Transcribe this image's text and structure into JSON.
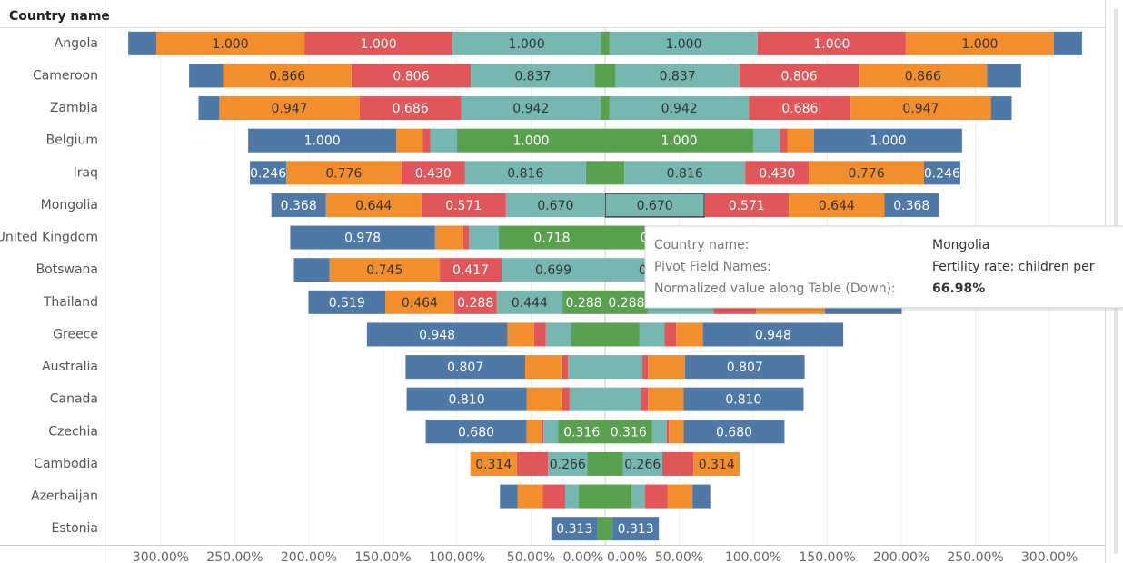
{
  "chart_data": {
    "type": "bar",
    "orientation": "horizontal",
    "mirrored": true,
    "ylabel": "Country name",
    "categories": [
      "Angola",
      "Cameroon",
      "Zambia",
      "Belgium",
      "Iraq",
      "Mongolia",
      "United Kingdom",
      "Botswana",
      "Thailand",
      "Greece",
      "Australia",
      "Canada",
      "Czechia",
      "Cambodia",
      "Azerbaijan",
      "Estonia"
    ],
    "series": [
      {
        "color": "#59a14f",
        "values": [
          3,
          7,
          3,
          100,
          13,
          0,
          71.8,
          0,
          28.8,
          23,
          0,
          0,
          31.6,
          12,
          18,
          5
        ],
        "value_labels": [
          null,
          null,
          null,
          "1.000",
          null,
          null,
          "0.718",
          null,
          "0.288",
          null,
          null,
          null,
          "0.316",
          null,
          null,
          null
        ]
      },
      {
        "color": "#76b7b2",
        "values": [
          100,
          83.7,
          94.2,
          18,
          81.6,
          67,
          20,
          69.9,
          44.4,
          17,
          25,
          24,
          10,
          26.6,
          9,
          0
        ],
        "value_labels": [
          "1.000",
          "0.837",
          "0.942",
          null,
          "0.816",
          "0.670",
          null,
          "0.699",
          "0.444",
          null,
          null,
          null,
          null,
          "0.266",
          null,
          null
        ]
      },
      {
        "color": "#e15759",
        "values": [
          100,
          80.6,
          68.6,
          5,
          43,
          57.1,
          4,
          41.7,
          28.8,
          8,
          4,
          5,
          1.5,
          21,
          15,
          0
        ],
        "value_labels": [
          "1.000",
          "0.806",
          "0.686",
          null,
          "0.430",
          "0.571",
          null,
          "0.417",
          "0.288",
          null,
          null,
          null,
          null,
          null,
          null,
          null
        ]
      },
      {
        "color": "#f28e2b",
        "values": [
          100,
          86.6,
          94.7,
          18,
          77.6,
          64.4,
          19,
          74.5,
          46.4,
          18,
          25,
          24,
          10,
          31.4,
          17,
          0
        ],
        "value_labels": [
          "1.000",
          "0.866",
          "0.947",
          null,
          "0.776",
          "0.644",
          null,
          "0.745",
          "0.464",
          null,
          null,
          null,
          null,
          "0.314",
          null,
          null
        ]
      },
      {
        "color": "#4e79a7",
        "values": [
          19,
          23,
          14,
          100,
          24.6,
          36.8,
          97.8,
          24,
          51.9,
          94.8,
          80.7,
          81,
          68,
          0,
          12,
          31.3
        ],
        "value_labels": [
          null,
          null,
          null,
          "1.000",
          "0.246",
          "0.368",
          "0.978",
          null,
          "0.519",
          "0.948",
          "0.807",
          "0.810",
          "0.680",
          null,
          null,
          "0.313"
        ]
      }
    ],
    "xlim": [
      0,
      338
    ],
    "xticks": [
      {
        "value": 0,
        "label": "0.00%"
      },
      {
        "value": 50,
        "label": "50.00%"
      },
      {
        "value": 100,
        "label": "100.00%"
      },
      {
        "value": 150,
        "label": "150.00%"
      },
      {
        "value": 200,
        "label": "200.00%"
      },
      {
        "value": 250,
        "label": "250.00%"
      },
      {
        "value": 300,
        "label": "300.00%"
      }
    ],
    "grid": true,
    "tooltip": {
      "rows": [
        {
          "label": "Country name:",
          "value": "Mongolia"
        },
        {
          "label": "Pivot Field Names:",
          "value": "Fertility rate: children per"
        },
        {
          "label": "Normalized value along Table (Down):",
          "value": "66.98%"
        }
      ]
    }
  }
}
